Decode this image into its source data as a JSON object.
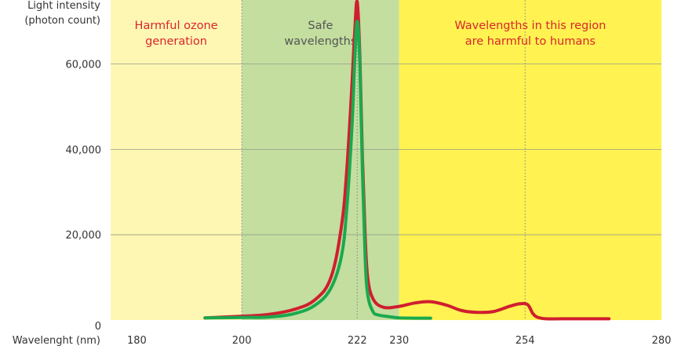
{
  "chart_data": {
    "type": "line",
    "ylabel": [
      "Light intensity",
      "(photon count)"
    ],
    "xlabel": "Wavelenght (nm)",
    "xlim": [
      175,
      280
    ],
    "ylim": [
      0,
      75000
    ],
    "x_ticks": [
      180,
      200,
      222,
      230,
      254,
      280
    ],
    "y_ticks": [
      0,
      20000,
      40000,
      60000
    ],
    "y_tick_labels": [
      "0",
      "20,000",
      "40,000",
      "60,000"
    ],
    "grid": {
      "horizontal": true,
      "vertical_dashed_at": [
        200,
        222,
        254
      ]
    },
    "regions": [
      {
        "x_from": 175,
        "x_to": 200,
        "color": "#fdf7b3",
        "label_lines": [
          "Harmful ozone",
          "generation"
        ],
        "label_color": "#d9262c"
      },
      {
        "x_from": 200,
        "x_to": 230,
        "color": "#c3de9f",
        "label_lines": [
          "Safe",
          "wavelengths"
        ],
        "label_color": "#555555"
      },
      {
        "x_from": 230,
        "x_to": 280,
        "color": "#fff251",
        "label_lines": [
          "Wavelengths in this region",
          "are harmful to humans"
        ],
        "label_color": "#d9262c"
      }
    ],
    "series": [
      {
        "color": "#cf1f2e",
        "x": [
          193,
          200,
          205,
          210,
          214,
          217,
          219,
          220,
          221,
          221.5,
          222,
          222.5,
          223,
          223.5,
          224,
          225,
          227,
          230,
          233,
          236,
          239,
          242,
          245,
          248,
          251,
          253,
          254.5,
          255.5,
          256.5,
          258,
          261,
          265,
          270
        ],
        "y": [
          500,
          900,
          1300,
          2500,
          4800,
          10000,
          22000,
          35000,
          55000,
          67000,
          76000,
          62000,
          38000,
          20000,
          10000,
          5000,
          3000,
          3200,
          4000,
          4300,
          3500,
          2200,
          1800,
          2000,
          3200,
          3800,
          3600,
          1500,
          600,
          300,
          300,
          300,
          300
        ]
      },
      {
        "color": "#1aa94f",
        "x": [
          193,
          200,
          205,
          210,
          214,
          217,
          219,
          220,
          221,
          221.5,
          222,
          222.5,
          223,
          223.5,
          224,
          225,
          226,
          228,
          230,
          233,
          236
        ],
        "y": [
          500,
          600,
          700,
          1500,
          3500,
          7500,
          15000,
          26000,
          45000,
          60000,
          70000,
          60000,
          35000,
          15000,
          6000,
          2000,
          1200,
          800,
          500,
          450,
          450
        ]
      }
    ]
  }
}
